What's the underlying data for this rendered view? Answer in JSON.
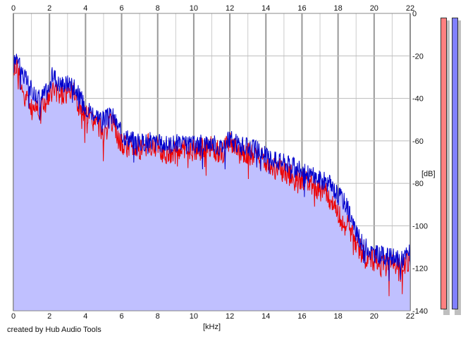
{
  "credit": "created by Hub Audio Tools",
  "chart_data": {
    "type": "area",
    "xlabel": "[kHz]",
    "ylabel": "[dB]",
    "xlim": [
      0,
      22
    ],
    "ylim": [
      -140,
      0
    ],
    "x_ticks": [
      "0",
      "2",
      "4",
      "6",
      "8",
      "10",
      "12",
      "14",
      "16",
      "18",
      "20",
      "22"
    ],
    "y_ticks": [
      "0",
      "-20",
      "-40",
      "-60",
      "-80",
      "-100",
      "-120",
      "-140"
    ],
    "grid": true,
    "fill_color": "#c0c0ff",
    "series": [
      {
        "color": "#0000cc",
        "x": [
          0,
          0.2,
          0.5,
          1,
          1.5,
          2,
          2.2,
          2.5,
          3,
          3.3,
          3.6,
          4,
          4.5,
          5,
          5.5,
          6,
          6.5,
          7,
          7.5,
          8,
          8.5,
          9,
          9.5,
          10,
          10.5,
          11,
          11.5,
          12,
          12.5,
          13,
          13.5,
          14,
          14.5,
          15,
          15.5,
          16,
          16.5,
          17,
          17.5,
          18,
          18.3,
          18.6,
          19,
          19.5,
          20,
          20.5,
          21,
          21.5,
          22
        ],
        "values": [
          -25,
          -18,
          -28,
          -36,
          -40,
          -35,
          -28,
          -33,
          -33,
          -32,
          -38,
          -44,
          -47,
          -50,
          -48,
          -57,
          -59,
          -61,
          -60,
          -61,
          -62,
          -61,
          -62,
          -62,
          -61,
          -61,
          -63,
          -59,
          -62,
          -63,
          -64,
          -67,
          -69,
          -70,
          -72,
          -74,
          -76,
          -78,
          -80,
          -85,
          -88,
          -92,
          -104,
          -110,
          -113,
          -114,
          -115,
          -116,
          -112
        ]
      },
      {
        "color": "#ee0000",
        "x": [
          0,
          0.2,
          0.5,
          1,
          1.5,
          2,
          2.2,
          2.5,
          3,
          3.3,
          3.6,
          4,
          4.5,
          5,
          5.5,
          6,
          6.5,
          7,
          7.5,
          8,
          8.5,
          9,
          9.5,
          10,
          10.5,
          11,
          11.5,
          12,
          12.5,
          13,
          13.5,
          14,
          14.5,
          15,
          15.5,
          16,
          16.5,
          17,
          17.5,
          18,
          18.3,
          18.6,
          19,
          19.5,
          20,
          20.5,
          21,
          21.5,
          22
        ],
        "values": [
          -27,
          -24,
          -36,
          -44,
          -44,
          -40,
          -36,
          -38,
          -38,
          -36,
          -44,
          -48,
          -51,
          -55,
          -52,
          -62,
          -63,
          -64,
          -62,
          -64,
          -66,
          -64,
          -65,
          -64,
          -64,
          -63,
          -66,
          -61,
          -66,
          -66,
          -67,
          -70,
          -73,
          -74,
          -77,
          -78,
          -80,
          -83,
          -86,
          -93,
          -100,
          -100,
          -108,
          -115,
          -116,
          -119,
          -118,
          -119,
          -116
        ]
      }
    ]
  },
  "meters": [
    {
      "color": "#ff8080",
      "level": 1.0
    },
    {
      "color": "#8080ff",
      "level": 1.0
    }
  ]
}
